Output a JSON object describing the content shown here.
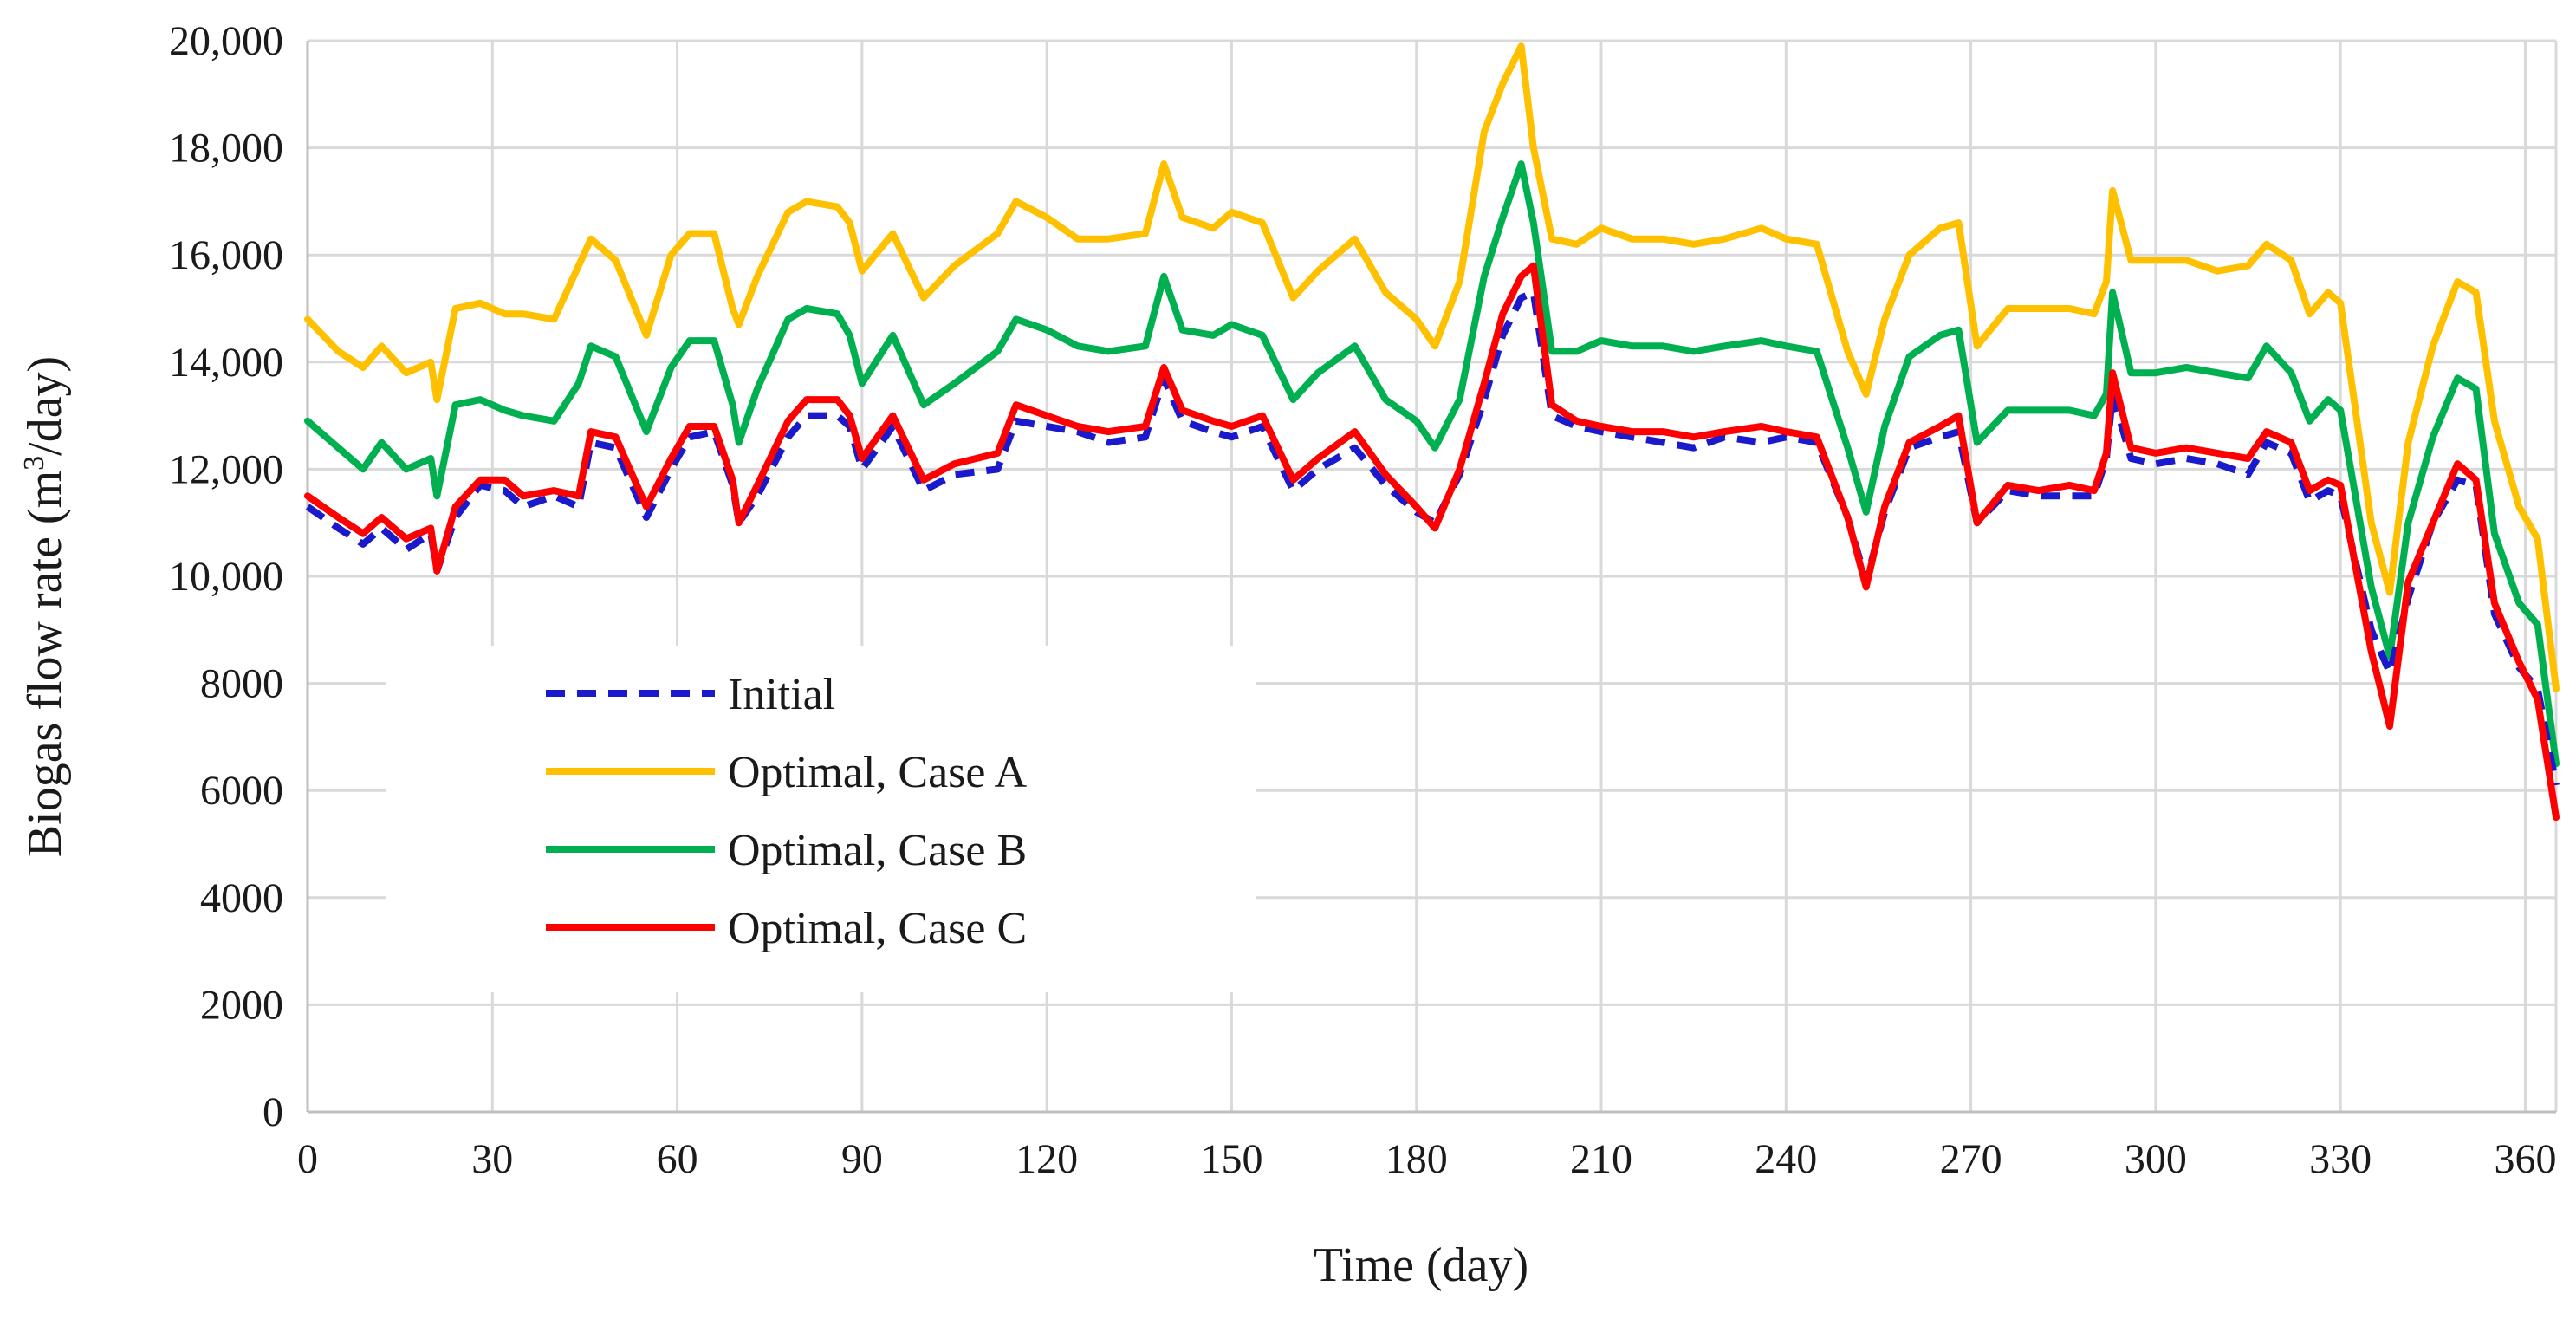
{
  "chart_data": {
    "type": "line",
    "title": "",
    "xlabel": "Time (day)",
    "ylabel": "Biogas flow rate (m³/day)",
    "ylabel_prefix": "Biogas flow rate (m",
    "ylabel_sup": "3",
    "ylabel_suffix": "/day)",
    "xlim": [
      0,
      365
    ],
    "ylim": [
      0,
      20000
    ],
    "grid": true,
    "legend_position": "left-center",
    "x_ticks": [
      0,
      30,
      60,
      90,
      120,
      150,
      180,
      210,
      240,
      270,
      300,
      330,
      360
    ],
    "x_tick_labels": [
      "0",
      "30",
      "60",
      "90",
      "120",
      "150",
      "180",
      "210",
      "240",
      "270",
      "300",
      "330",
      "360"
    ],
    "y_ticks": [
      0,
      2000,
      4000,
      6000,
      8000,
      10000,
      12000,
      14000,
      16000,
      18000,
      20000
    ],
    "y_tick_labels": [
      "0",
      "2000",
      "4000",
      "6000",
      "8000",
      "10,000",
      "12,000",
      "14,000",
      "16,000",
      "18,000",
      "20,000"
    ],
    "x": [
      0,
      5,
      9,
      12,
      16,
      20,
      21,
      24,
      28,
      32,
      35,
      40,
      44,
      46,
      50,
      55,
      59,
      62,
      66,
      69,
      70,
      73,
      78,
      81,
      86,
      88,
      90,
      95,
      100,
      105,
      112,
      115,
      120,
      125,
      130,
      136,
      139,
      142,
      147,
      150,
      155,
      160,
      164,
      170,
      175,
      180,
      183,
      187,
      191,
      194,
      197,
      199,
      202,
      206,
      210,
      215,
      220,
      225,
      230,
      236,
      240,
      245,
      250,
      253,
      256,
      260,
      265,
      268,
      271,
      276,
      281,
      286,
      290,
      292,
      293,
      296,
      300,
      305,
      310,
      315,
      318,
      322,
      325,
      328,
      330,
      335,
      338,
      341,
      345,
      349,
      352,
      355,
      359,
      362,
      365
    ],
    "series": [
      {
        "name": "Initial",
        "color": "#1a1acc",
        "dash": true,
        "values": [
          11300,
          10900,
          10600,
          10900,
          10500,
          10800,
          10100,
          11100,
          11700,
          11600,
          11300,
          11500,
          11300,
          12500,
          12400,
          11100,
          12000,
          12600,
          12700,
          11700,
          11000,
          11500,
          12600,
          13000,
          13000,
          12800,
          12000,
          12800,
          11600,
          11900,
          12000,
          12900,
          12800,
          12700,
          12500,
          12600,
          13700,
          12900,
          12700,
          12600,
          12800,
          11600,
          12000,
          12400,
          11700,
          11200,
          11000,
          11900,
          13300,
          14500,
          15200,
          15300,
          13000,
          12800,
          12700,
          12600,
          12500,
          12400,
          12600,
          12500,
          12600,
          12500,
          11100,
          9900,
          11200,
          12400,
          12600,
          12700,
          11000,
          11600,
          11500,
          11500,
          11500,
          12200,
          13400,
          12200,
          12100,
          12200,
          12100,
          11900,
          12500,
          12300,
          11400,
          11600,
          11500,
          9000,
          8200,
          9600,
          11000,
          11800,
          11700,
          9300,
          8300,
          7900,
          6100
        ]
      },
      {
        "name": "Optimal, Case A",
        "color": "#ffc000",
        "dash": false,
        "values": [
          14800,
          14200,
          13900,
          14300,
          13800,
          14000,
          13300,
          15000,
          15100,
          14900,
          14900,
          14800,
          15800,
          16300,
          15900,
          14500,
          16000,
          16400,
          16400,
          15000,
          14700,
          15600,
          16800,
          17000,
          16900,
          16600,
          15700,
          16400,
          15200,
          15800,
          16400,
          17000,
          16700,
          16300,
          16300,
          16400,
          17700,
          16700,
          16500,
          16800,
          16600,
          15200,
          15700,
          16300,
          15300,
          14800,
          14300,
          15500,
          18300,
          19200,
          19900,
          18000,
          16300,
          16200,
          16500,
          16300,
          16300,
          16200,
          16300,
          16500,
          16300,
          16200,
          14200,
          13400,
          14800,
          16000,
          16500,
          16600,
          14300,
          15000,
          15000,
          15000,
          14900,
          15500,
          17200,
          15900,
          15900,
          15900,
          15700,
          15800,
          16200,
          15900,
          14900,
          15300,
          15100,
          11000,
          9700,
          12500,
          14300,
          15500,
          15300,
          12900,
          11300,
          10700,
          7900
        ]
      },
      {
        "name": "Optimal, Case B",
        "color": "#00b050",
        "dash": false,
        "values": [
          12900,
          12400,
          12000,
          12500,
          12000,
          12200,
          11500,
          13200,
          13300,
          13100,
          13000,
          12900,
          13600,
          14300,
          14100,
          12700,
          13900,
          14400,
          14400,
          13200,
          12500,
          13500,
          14800,
          15000,
          14900,
          14500,
          13600,
          14500,
          13200,
          13600,
          14200,
          14800,
          14600,
          14300,
          14200,
          14300,
          15600,
          14600,
          14500,
          14700,
          14500,
          13300,
          13800,
          14300,
          13300,
          12900,
          12400,
          13300,
          15600,
          16700,
          17700,
          16600,
          14200,
          14200,
          14400,
          14300,
          14300,
          14200,
          14300,
          14400,
          14300,
          14200,
          12400,
          11200,
          12800,
          14100,
          14500,
          14600,
          12500,
          13100,
          13100,
          13100,
          13000,
          13400,
          15300,
          13800,
          13800,
          13900,
          13800,
          13700,
          14300,
          13800,
          12900,
          13300,
          13100,
          9800,
          8500,
          11000,
          12600,
          13700,
          13500,
          10800,
          9500,
          9100,
          6500
        ]
      },
      {
        "name": "Optimal, Case C",
        "color": "#ff0000",
        "dash": false,
        "values": [
          11500,
          11100,
          10800,
          11100,
          10700,
          10900,
          10100,
          11300,
          11800,
          11800,
          11500,
          11600,
          11500,
          12700,
          12600,
          11300,
          12200,
          12800,
          12800,
          11800,
          11000,
          11700,
          12900,
          13300,
          13300,
          13000,
          12200,
          13000,
          11800,
          12100,
          12300,
          13200,
          13000,
          12800,
          12700,
          12800,
          13900,
          13100,
          12900,
          12800,
          13000,
          11800,
          12200,
          12700,
          11900,
          11300,
          10900,
          12000,
          13600,
          14900,
          15600,
          15800,
          13200,
          12900,
          12800,
          12700,
          12700,
          12600,
          12700,
          12800,
          12700,
          12600,
          11100,
          9800,
          11300,
          12500,
          12800,
          13000,
          11000,
          11700,
          11600,
          11700,
          11600,
          12300,
          13800,
          12400,
          12300,
          12400,
          12300,
          12200,
          12700,
          12500,
          11600,
          11800,
          11700,
          8600,
          7200,
          9900,
          11000,
          12100,
          11800,
          9500,
          8400,
          7700,
          5500
        ]
      }
    ]
  }
}
